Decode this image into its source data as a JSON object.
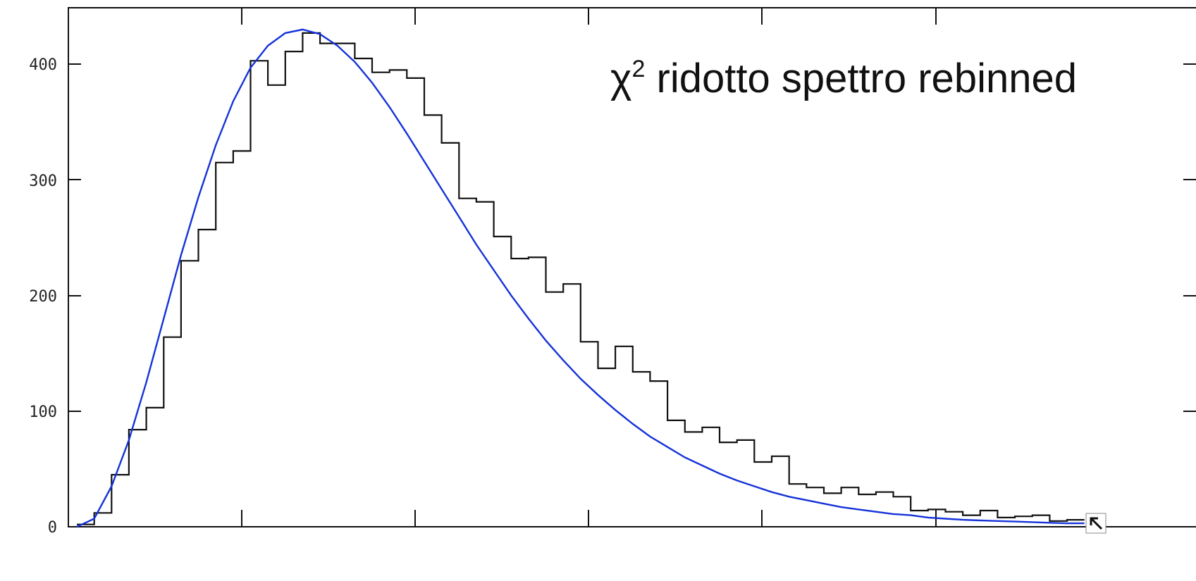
{
  "chart_data": {
    "type": "line",
    "title": "",
    "xlabel": "",
    "ylabel": "",
    "ylim": [
      0,
      450
    ],
    "xlim": [
      0,
      58.5
    ],
    "grid": false,
    "legend": "none",
    "y_ticks": [
      "0",
      "100",
      "200",
      "300",
      "400"
    ],
    "annotation": {
      "chi": "χ",
      "sup": "2",
      "rest": " ridotto spettro rebinned",
      "placement": "top-right"
    },
    "series": [
      {
        "kind": "histogram",
        "color": "#111111",
        "bin_width": 1,
        "values": [
          2,
          12,
          45,
          84,
          103,
          164,
          230,
          257,
          315,
          325,
          403,
          382,
          411,
          427,
          418,
          418,
          405,
          393,
          395,
          388,
          356,
          332,
          284,
          281,
          251,
          232,
          233,
          203,
          210,
          160,
          137,
          156,
          134,
          126,
          92,
          82,
          86,
          73,
          75,
          56,
          61,
          37,
          34,
          29,
          34,
          28,
          30,
          26,
          14,
          15,
          13,
          10,
          14,
          8,
          9,
          10,
          5,
          6
        ]
      },
      {
        "kind": "fit",
        "color": "#1432d8",
        "x": [
          0,
          1,
          2,
          3,
          4,
          5,
          6,
          7,
          8,
          9,
          10,
          11,
          12,
          13,
          14,
          15,
          16,
          17,
          18,
          19,
          20,
          21,
          22,
          23,
          24,
          25,
          26,
          27,
          28,
          29,
          30,
          31,
          32,
          33,
          34,
          35,
          36,
          37,
          38,
          39,
          40,
          41,
          42,
          43,
          44,
          45,
          46,
          47,
          48,
          49,
          50,
          51,
          52,
          53,
          54,
          55,
          56,
          57,
          58
        ],
        "values": [
          0,
          7,
          35,
          75,
          125,
          180,
          235,
          285,
          330,
          368,
          397,
          416,
          427,
          430,
          426,
          416,
          402,
          384,
          363,
          340,
          316,
          292,
          268,
          244,
          222,
          200,
          180,
          161,
          144,
          128,
          114,
          101,
          89,
          78,
          69,
          60,
          53,
          46,
          40,
          35,
          30,
          26,
          23,
          20,
          17,
          15,
          13,
          11,
          10,
          8,
          7,
          6,
          5.5,
          5,
          4.5,
          4,
          3.5,
          3,
          3
        ]
      }
    ]
  }
}
